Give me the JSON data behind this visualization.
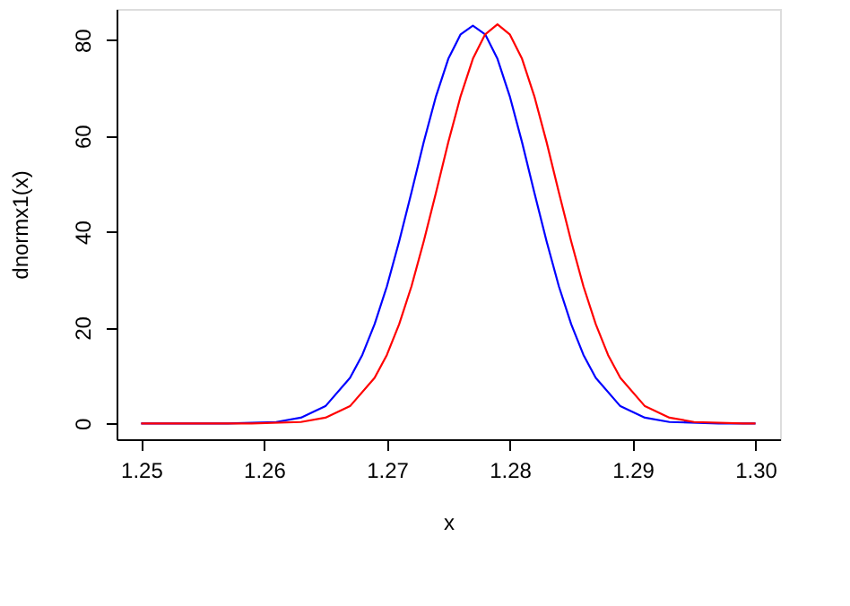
{
  "chart_data": {
    "type": "line",
    "xlabel": "x",
    "ylabel": "dnormx1(x)",
    "xlim": [
      1.248,
      1.302
    ],
    "ylim": [
      -3.3,
      86.5
    ],
    "xticks": [
      1.25,
      1.26,
      1.27,
      1.28,
      1.29,
      {
        "value": 1.3,
        "label": "1.30"
      }
    ],
    "yticks": [
      0,
      20,
      40,
      60,
      80
    ],
    "grid": false,
    "marker": "none",
    "line_style": "solid",
    "series": [
      {
        "color": "#0000ff",
        "x": [
          1.25,
          1.257,
          1.261,
          1.263,
          1.265,
          1.267,
          1.268,
          1.269,
          1.27,
          1.271,
          1.272,
          1.273,
          1.274,
          1.275,
          1.276,
          1.277,
          1.278,
          1.279,
          1.28,
          1.281,
          1.282,
          1.283,
          1.284,
          1.285,
          1.286,
          1.287,
          1.289,
          1.291,
          1.293,
          1.297,
          1.3
        ],
        "values": [
          0,
          0,
          0.3,
          1.2,
          3.6,
          9.5,
          14.3,
          20.7,
          28.6,
          38.0,
          48.2,
          58.7,
          68.3,
          76.1,
          81.2,
          83,
          81.2,
          76.1,
          68.3,
          58.7,
          48.2,
          38.0,
          28.6,
          20.7,
          14.3,
          9.5,
          3.6,
          1.2,
          0.3,
          0,
          0
        ]
      },
      {
        "color": "#ff0000",
        "x": [
          1.25,
          1.259,
          1.263,
          1.265,
          1.267,
          1.269,
          1.27,
          1.271,
          1.272,
          1.273,
          1.274,
          1.275,
          1.276,
          1.277,
          1.278,
          1.279,
          1.28,
          1.281,
          1.282,
          1.283,
          1.284,
          1.285,
          1.286,
          1.287,
          1.288,
          1.289,
          1.291,
          1.293,
          1.295,
          1.299,
          1.3
        ],
        "values": [
          0,
          0,
          0.3,
          1.2,
          3.6,
          9.5,
          14.3,
          20.7,
          28.6,
          38.0,
          48.2,
          58.7,
          68.3,
          76.1,
          81.2,
          83.3,
          81.2,
          76.1,
          68.3,
          58.7,
          48.2,
          38.0,
          28.6,
          20.7,
          14.3,
          9.5,
          3.6,
          1.2,
          0.3,
          0,
          0
        ]
      }
    ]
  }
}
